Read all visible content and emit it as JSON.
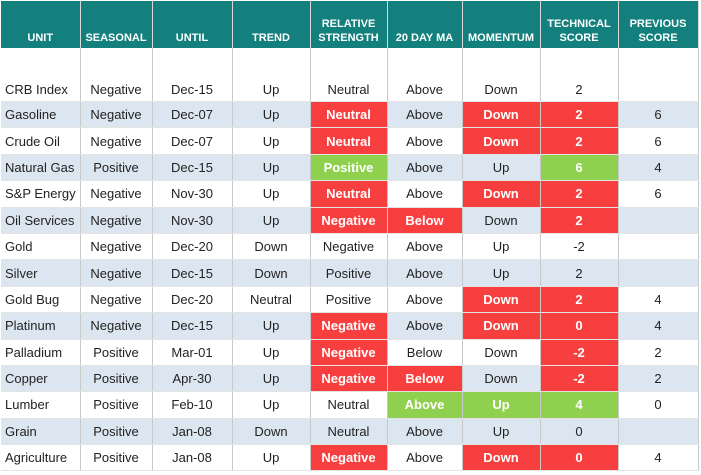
{
  "table": {
    "headers": [
      "UNIT",
      "SEASONAL",
      "UNTIL",
      "TREND",
      "RELATIVE STRENGTH",
      "20 DAY MA",
      "MOMENTUM",
      "TECHNICAL SCORE",
      "PREVIOUS SCORE"
    ],
    "rows": [
      [
        "CRB Index",
        "Negative",
        "Dec-15",
        "Up",
        "Neutral",
        "Above",
        "Down",
        2,
        null
      ],
      [
        "Gasoline",
        "Negative",
        "Dec-07",
        "Up",
        "Neutral",
        "Above",
        "Down",
        2,
        6
      ],
      [
        "Crude Oil",
        "Negative",
        "Dec-07",
        "Up",
        "Neutral",
        "Above",
        "Down",
        2,
        6
      ],
      [
        "Natural Gas",
        "Positive",
        "Dec-15",
        "Up",
        "Positive",
        "Above",
        "Up",
        6,
        4
      ],
      [
        "S&P Energy",
        "Negative",
        "Nov-30",
        "Up",
        "Neutral",
        "Above",
        "Down",
        2,
        6
      ],
      [
        "Oil Services",
        "Negative",
        "Nov-30",
        "Up",
        "Negative",
        "Below",
        "Down",
        2,
        null
      ],
      [
        "Gold",
        "Negative",
        "Dec-20",
        "Down",
        "Negative",
        "Above",
        "Up",
        -2,
        null
      ],
      [
        "Silver",
        "Negative",
        "Dec-15",
        "Down",
        "Positive",
        "Above",
        "Up",
        2,
        null
      ],
      [
        "Gold Bug",
        "Negative",
        "Dec-20",
        "Neutral",
        "Positive",
        "Above",
        "Down",
        2,
        4
      ],
      [
        "Platinum",
        "Negative",
        "Dec-15",
        "Up",
        "Negative",
        "Above",
        "Down",
        0,
        4
      ],
      [
        "Palladium",
        "Positive",
        "Mar-01",
        "Up",
        "Negative",
        "Below",
        "Down",
        -2,
        2
      ],
      [
        "Copper",
        "Positive",
        "Apr-30",
        "Up",
        "Negative",
        "Below",
        "Down",
        -2,
        2
      ],
      [
        "Lumber",
        "Positive",
        "Feb-10",
        "Up",
        "Neutral",
        "Above",
        "Up",
        4,
        0
      ],
      [
        "Grain",
        "Positive",
        "Jan-08",
        "Down",
        "Neutral",
        "Above",
        "Up",
        0,
        null
      ],
      [
        "Agriculture",
        "Positive",
        "Jan-08",
        "Up",
        "Negative",
        "Above",
        "Down",
        0,
        4
      ]
    ]
  }
}
